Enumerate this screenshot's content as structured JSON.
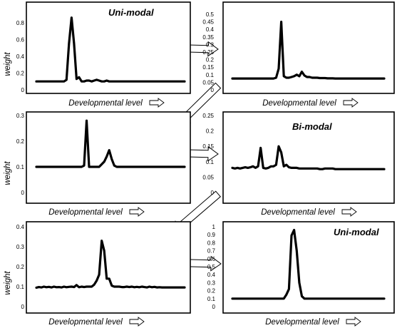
{
  "chart_data": [
    {
      "type": "line",
      "title": "Uni-modal",
      "xlabel": "Developmental level",
      "ylabel": "weight",
      "ylim": [
        0,
        0.9
      ],
      "yticks": [
        "0",
        "0.2",
        "0.4",
        "0.6",
        "0.8"
      ],
      "grid": false,
      "series": [
        {
          "values": [
            0.1,
            0.1,
            0.1,
            0.1,
            0.1,
            0.1,
            0.1,
            0.1,
            0.1,
            0.1,
            0.1,
            0.1,
            0.12,
            0.55,
            0.86,
            0.55,
            0.13,
            0.15,
            0.1,
            0.1,
            0.11,
            0.11,
            0.1,
            0.11,
            0.12,
            0.11,
            0.1,
            0.1,
            0.11,
            0.1,
            0.1,
            0.1,
            0.1,
            0.1,
            0.1,
            0.1,
            0.1,
            0.1,
            0.1,
            0.1,
            0.1,
            0.1,
            0.1,
            0.1,
            0.1,
            0.1,
            0.1,
            0.1,
            0.1,
            0.1,
            0.1,
            0.1,
            0.1,
            0.1,
            0.1,
            0.1,
            0.1,
            0.1,
            0.1,
            0.1
          ]
        }
      ]
    },
    {
      "type": "line",
      "title": "",
      "xlabel": "Developmental level",
      "ylabel": "",
      "ylim": [
        0,
        0.5
      ],
      "yticks": [
        "0",
        "0.05",
        "0.1",
        "0.15",
        "0.2",
        "0.25",
        "0.3",
        "0.35",
        "0.4",
        "0.45",
        "0.5"
      ],
      "grid": false,
      "series": [
        {
          "values": [
            0.075,
            0.075,
            0.075,
            0.075,
            0.075,
            0.075,
            0.075,
            0.075,
            0.075,
            0.075,
            0.075,
            0.075,
            0.075,
            0.075,
            0.075,
            0.075,
            0.075,
            0.08,
            0.14,
            0.45,
            0.09,
            0.08,
            0.08,
            0.085,
            0.09,
            0.1,
            0.09,
            0.12,
            0.095,
            0.085,
            0.085,
            0.08,
            0.08,
            0.08,
            0.078,
            0.078,
            0.078,
            0.076,
            0.076,
            0.076,
            0.075,
            0.075,
            0.075,
            0.075,
            0.075,
            0.075,
            0.075,
            0.075,
            0.075,
            0.075,
            0.075,
            0.075,
            0.075,
            0.075,
            0.075,
            0.075,
            0.075,
            0.075,
            0.075,
            0.075
          ]
        }
      ]
    },
    {
      "type": "line",
      "title": "",
      "xlabel": "Developmental level",
      "ylabel": "weight",
      "ylim": [
        0,
        0.3
      ],
      "yticks": [
        "0",
        "0.1",
        "0.2",
        "0.3"
      ],
      "grid": false,
      "series": [
        {
          "values": [
            0.1,
            0.1,
            0.1,
            0.1,
            0.1,
            0.1,
            0.1,
            0.1,
            0.1,
            0.1,
            0.1,
            0.1,
            0.1,
            0.1,
            0.1,
            0.1,
            0.1,
            0.1,
            0.1,
            0.105,
            0.28,
            0.1,
            0.1,
            0.1,
            0.1,
            0.1,
            0.11,
            0.12,
            0.14,
            0.165,
            0.13,
            0.105,
            0.1,
            0.1,
            0.1,
            0.1,
            0.1,
            0.1,
            0.1,
            0.1,
            0.1,
            0.1,
            0.1,
            0.1,
            0.1,
            0.1,
            0.1,
            0.1,
            0.1,
            0.1,
            0.1,
            0.1,
            0.1,
            0.1,
            0.1,
            0.1,
            0.1,
            0.1,
            0.1,
            0.1
          ]
        }
      ]
    },
    {
      "type": "line",
      "title": "Bi-modal",
      "xlabel": "Developmental level",
      "ylabel": "",
      "ylim": [
        0,
        0.25
      ],
      "yticks": [
        "0",
        "0.05",
        "0.1",
        "0.15",
        "0.2",
        "0.25"
      ],
      "grid": false,
      "series": [
        {
          "values": [
            0.08,
            0.078,
            0.08,
            0.078,
            0.08,
            0.082,
            0.08,
            0.082,
            0.085,
            0.08,
            0.085,
            0.145,
            0.08,
            0.078,
            0.08,
            0.085,
            0.085,
            0.09,
            0.15,
            0.13,
            0.085,
            0.09,
            0.082,
            0.08,
            0.08,
            0.08,
            0.078,
            0.078,
            0.078,
            0.078,
            0.078,
            0.078,
            0.078,
            0.078,
            0.076,
            0.076,
            0.078,
            0.078,
            0.078,
            0.078,
            0.076,
            0.076,
            0.076,
            0.076,
            0.076,
            0.076,
            0.076,
            0.076,
            0.076,
            0.076,
            0.076,
            0.076,
            0.076,
            0.076,
            0.076,
            0.076,
            0.076,
            0.076,
            0.076,
            0.076
          ]
        }
      ]
    },
    {
      "type": "line",
      "title": "",
      "xlabel": "Developmental level",
      "ylabel": "weight",
      "ylim": [
        0,
        0.4
      ],
      "yticks": [
        "0",
        "0.1",
        "0.2",
        "0.3",
        "0.4"
      ],
      "grid": false,
      "series": [
        {
          "values": [
            0.095,
            0.098,
            0.096,
            0.1,
            0.097,
            0.099,
            0.096,
            0.1,
            0.097,
            0.098,
            0.096,
            0.1,
            0.097,
            0.099,
            0.1,
            0.098,
            0.108,
            0.097,
            0.1,
            0.098,
            0.1,
            0.1,
            0.1,
            0.11,
            0.13,
            0.16,
            0.33,
            0.28,
            0.14,
            0.14,
            0.105,
            0.1,
            0.1,
            0.1,
            0.098,
            0.098,
            0.1,
            0.098,
            0.1,
            0.097,
            0.099,
            0.097,
            0.1,
            0.098,
            0.096,
            0.1,
            0.097,
            0.099,
            0.096,
            0.097,
            0.096,
            0.096,
            0.096,
            0.096,
            0.096,
            0.096,
            0.096,
            0.096,
            0.096,
            0.096
          ]
        }
      ]
    },
    {
      "type": "line",
      "title": "Uni-modal",
      "xlabel": "Developmental level",
      "ylabel": "",
      "ylim": [
        0,
        1
      ],
      "yticks": [
        "0",
        "0.1",
        "0.2",
        "0.3",
        "0.4",
        "0.5",
        "0.6",
        "0.7",
        "0.8",
        "0.9",
        "1"
      ],
      "grid": false,
      "series": [
        {
          "values": [
            0.1,
            0.1,
            0.1,
            0.1,
            0.1,
            0.1,
            0.1,
            0.1,
            0.1,
            0.1,
            0.1,
            0.1,
            0.1,
            0.1,
            0.1,
            0.1,
            0.1,
            0.1,
            0.1,
            0.1,
            0.1,
            0.15,
            0.22,
            0.89,
            0.96,
            0.7,
            0.3,
            0.13,
            0.1,
            0.1,
            0.1,
            0.1,
            0.1,
            0.1,
            0.1,
            0.1,
            0.1,
            0.1,
            0.1,
            0.1,
            0.1,
            0.1,
            0.1,
            0.1,
            0.1,
            0.1,
            0.1,
            0.1,
            0.1,
            0.1,
            0.1,
            0.1,
            0.1,
            0.1,
            0.1,
            0.1,
            0.1,
            0.1,
            0.1,
            0.1
          ]
        }
      ]
    }
  ]
}
